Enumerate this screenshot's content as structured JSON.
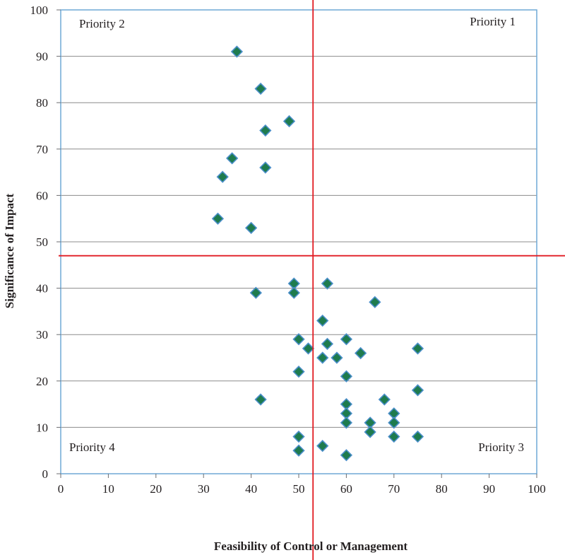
{
  "chart_data": {
    "type": "scatter",
    "title": "",
    "xlabel": "Feasibility of Control or Management",
    "ylabel": "Significance of Impact",
    "xlim": [
      0,
      100
    ],
    "ylim": [
      0,
      100
    ],
    "xticks": [
      0,
      10,
      20,
      30,
      40,
      50,
      60,
      70,
      80,
      90,
      100
    ],
    "yticks": [
      0,
      10,
      20,
      30,
      40,
      50,
      60,
      70,
      80,
      90,
      100
    ],
    "grid": "horizontal",
    "marker": "diamond",
    "marker_color": "#1e7b4e",
    "marker_edge_color": "#4a8ec9",
    "frame_color": "#6fa8d6",
    "divider_color": "#e11b22",
    "divider_x": 53,
    "divider_y": 47,
    "quadrants": {
      "top_left": "Priority 2",
      "top_right": "Priority 1",
      "bottom_left": "Priority 4",
      "bottom_right": "Priority 3"
    },
    "points": [
      {
        "x": 37,
        "y": 91
      },
      {
        "x": 42,
        "y": 83
      },
      {
        "x": 48,
        "y": 76
      },
      {
        "x": 43,
        "y": 74
      },
      {
        "x": 36,
        "y": 68
      },
      {
        "x": 43,
        "y": 66
      },
      {
        "x": 34,
        "y": 64
      },
      {
        "x": 33,
        "y": 55
      },
      {
        "x": 40,
        "y": 53
      },
      {
        "x": 49,
        "y": 41
      },
      {
        "x": 56,
        "y": 41
      },
      {
        "x": 41,
        "y": 39
      },
      {
        "x": 49,
        "y": 39
      },
      {
        "x": 66,
        "y": 37
      },
      {
        "x": 55,
        "y": 33
      },
      {
        "x": 50,
        "y": 29
      },
      {
        "x": 60,
        "y": 29
      },
      {
        "x": 56,
        "y": 28
      },
      {
        "x": 52,
        "y": 27
      },
      {
        "x": 75,
        "y": 27
      },
      {
        "x": 63,
        "y": 26
      },
      {
        "x": 55,
        "y": 25
      },
      {
        "x": 58,
        "y": 25
      },
      {
        "x": 50,
        "y": 22
      },
      {
        "x": 60,
        "y": 21
      },
      {
        "x": 75,
        "y": 18
      },
      {
        "x": 42,
        "y": 16
      },
      {
        "x": 68,
        "y": 16
      },
      {
        "x": 60,
        "y": 15
      },
      {
        "x": 60,
        "y": 13
      },
      {
        "x": 70,
        "y": 13
      },
      {
        "x": 60,
        "y": 11
      },
      {
        "x": 65,
        "y": 11
      },
      {
        "x": 70,
        "y": 11
      },
      {
        "x": 65,
        "y": 9
      },
      {
        "x": 50,
        "y": 8
      },
      {
        "x": 70,
        "y": 8
      },
      {
        "x": 75,
        "y": 8
      },
      {
        "x": 55,
        "y": 6
      },
      {
        "x": 50,
        "y": 5
      },
      {
        "x": 60,
        "y": 4
      }
    ]
  }
}
